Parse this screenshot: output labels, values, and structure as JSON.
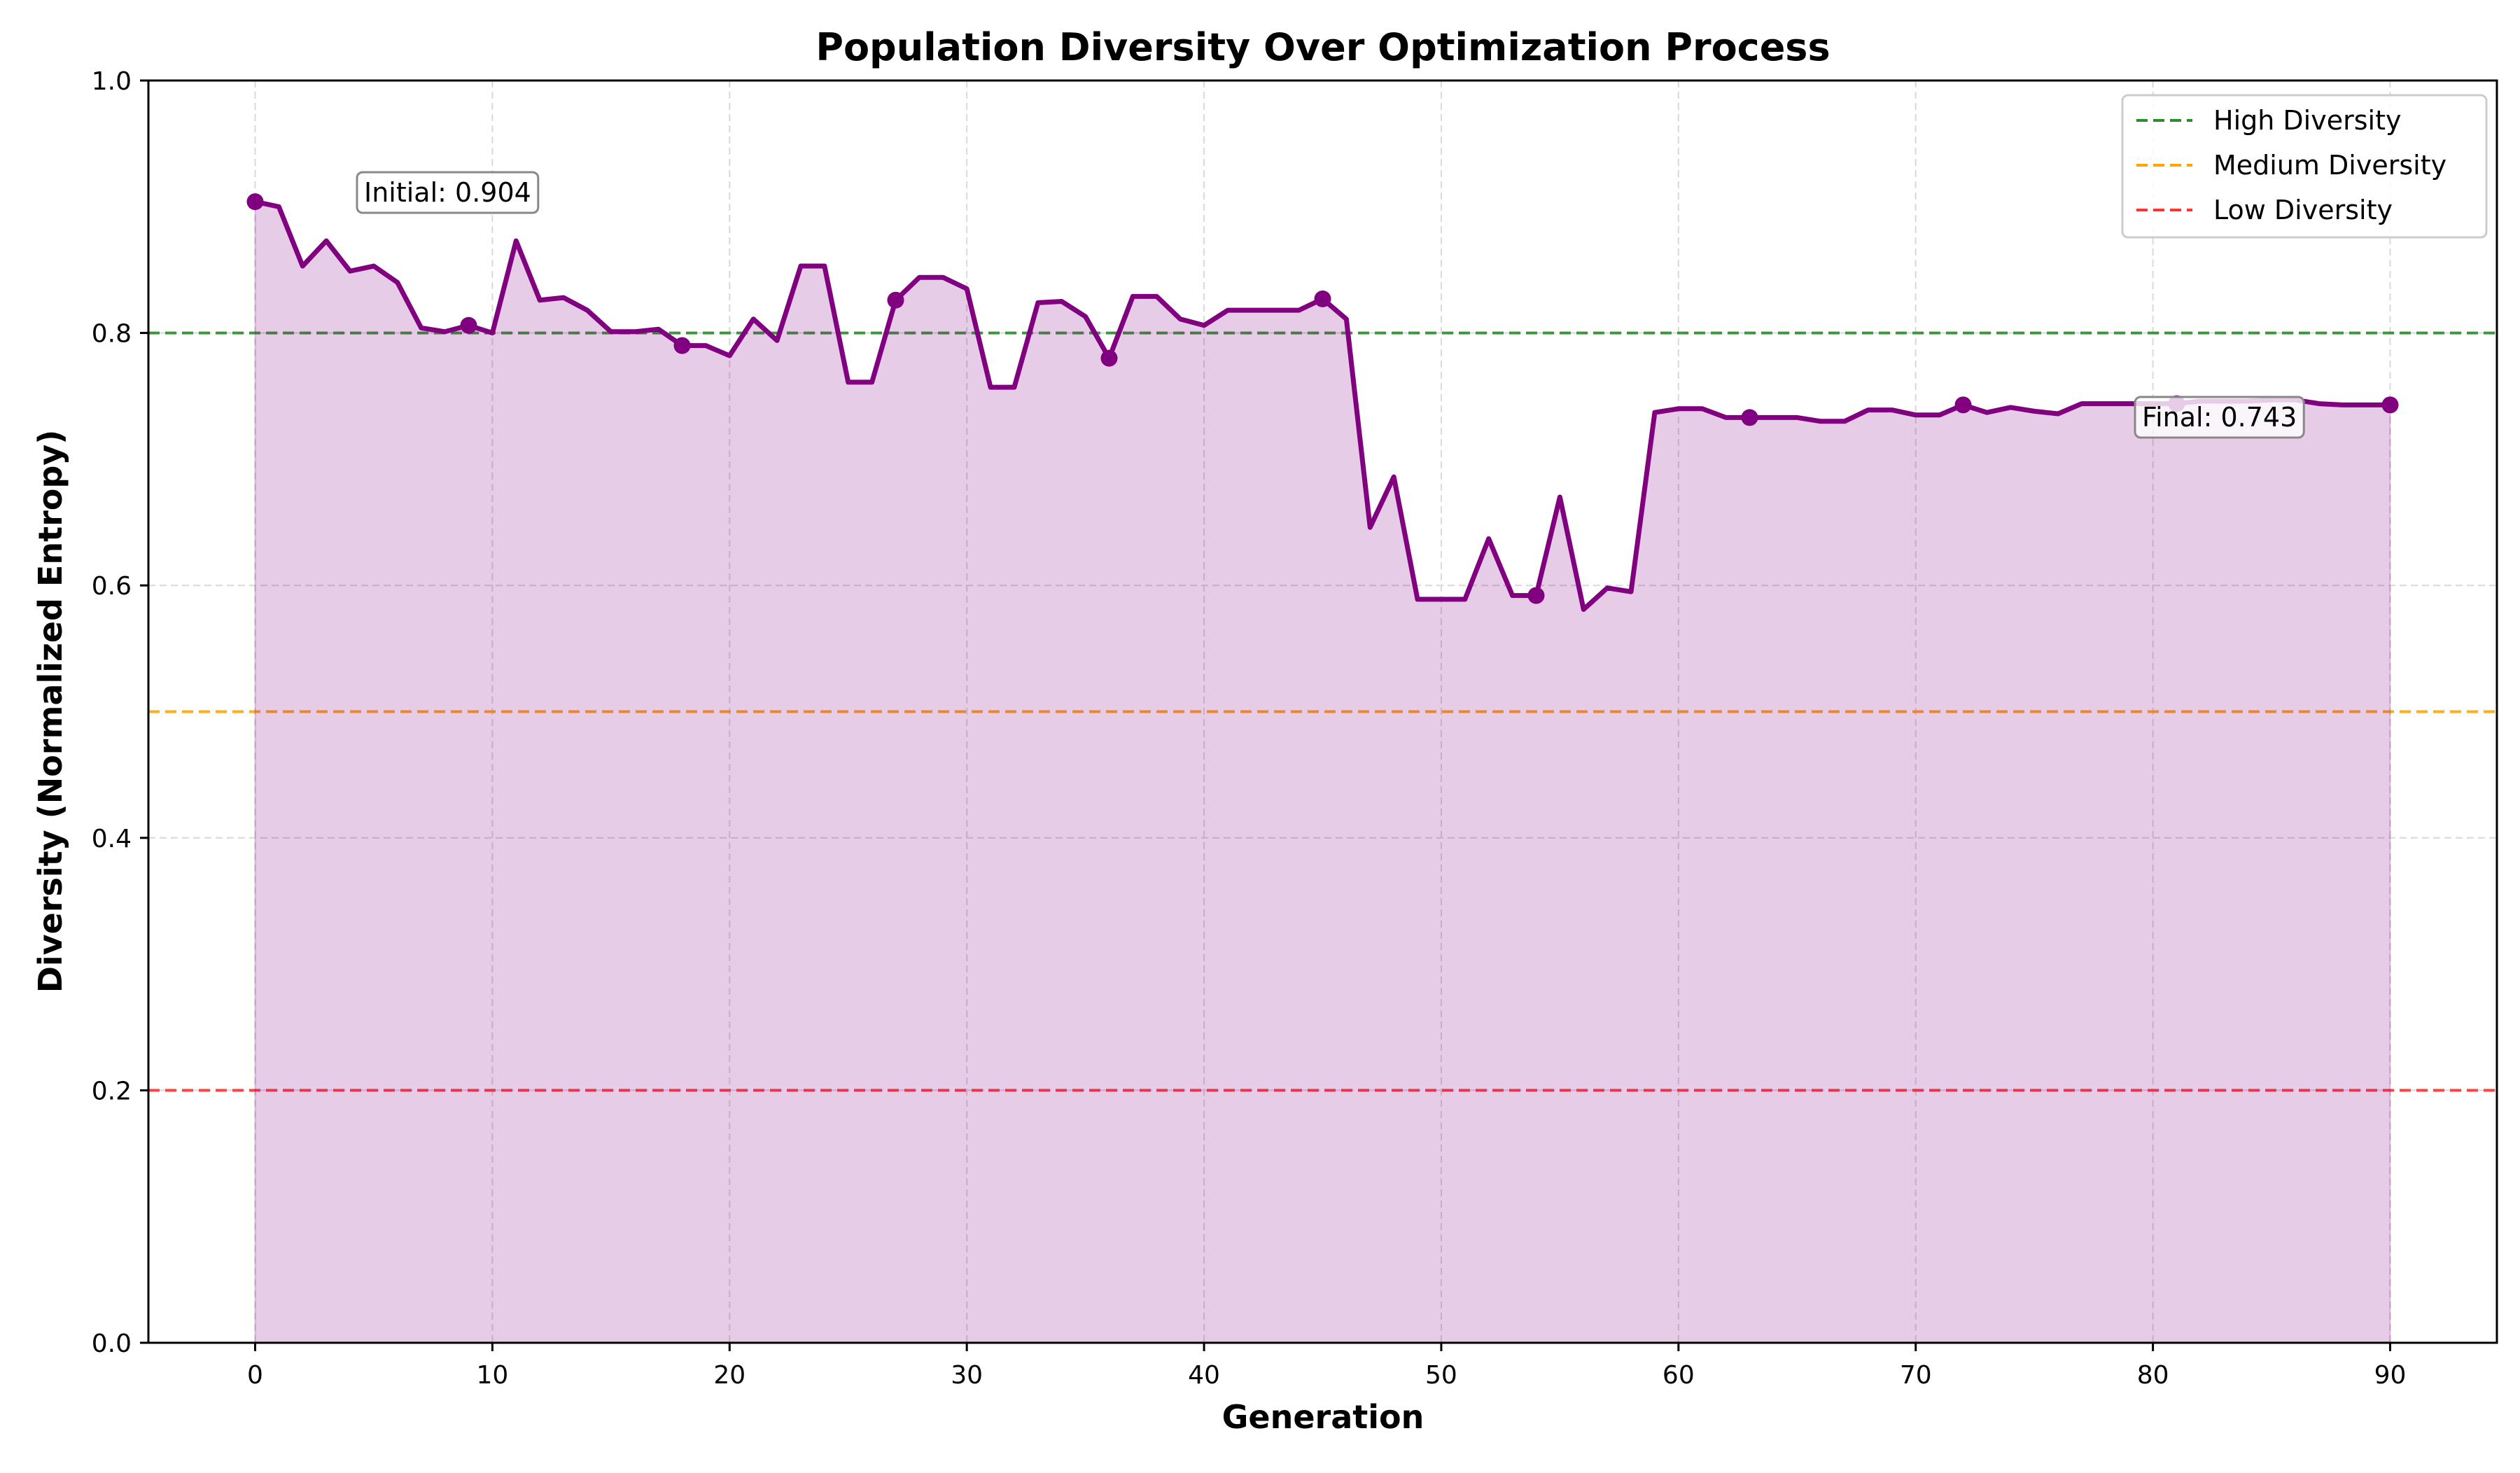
{
  "chart_data": {
    "type": "line",
    "title": "Population Diversity Over Optimization Process",
    "xlabel": "Generation",
    "ylabel": "Diversity (Normalized Entropy)",
    "xlim": [
      -4.5,
      94.5
    ],
    "ylim": [
      0.0,
      1.0
    ],
    "xticks": [
      0,
      10,
      20,
      30,
      40,
      50,
      60,
      70,
      80,
      90
    ],
    "xtick_labels": [
      "0",
      "10",
      "20",
      "30",
      "40",
      "50",
      "60",
      "70",
      "80",
      "90"
    ],
    "yticks": [
      0.0,
      0.2,
      0.4,
      0.6,
      0.8,
      1.0
    ],
    "ytick_labels": [
      "0.0",
      "0.2",
      "0.4",
      "0.6",
      "0.8",
      "1.0"
    ],
    "grid": true,
    "legend_position": "top-right",
    "series": [
      {
        "color": "#800080",
        "fill": "area",
        "x": [
          0,
          1,
          2,
          3,
          4,
          5,
          6,
          7,
          8,
          9,
          10,
          11,
          12,
          13,
          14,
          15,
          16,
          17,
          18,
          19,
          20,
          21,
          22,
          23,
          24,
          25,
          26,
          27,
          28,
          29,
          30,
          31,
          32,
          33,
          34,
          35,
          36,
          37,
          38,
          39,
          40,
          41,
          42,
          43,
          44,
          45,
          46,
          47,
          48,
          49,
          50,
          51,
          52,
          53,
          54,
          55,
          56,
          57,
          58,
          59,
          60,
          61,
          62,
          63,
          64,
          65,
          66,
          67,
          68,
          69,
          70,
          71,
          72,
          73,
          74,
          75,
          76,
          77,
          78,
          79,
          80,
          81,
          82,
          83,
          84,
          85,
          86,
          87,
          88,
          89,
          90
        ],
        "y": [
          0.904,
          0.9,
          0.853,
          0.873,
          0.849,
          0.853,
          0.84,
          0.804,
          0.801,
          0.806,
          0.8,
          0.873,
          0.826,
          0.828,
          0.818,
          0.801,
          0.801,
          0.803,
          0.79,
          0.79,
          0.782,
          0.811,
          0.794,
          0.853,
          0.853,
          0.761,
          0.761,
          0.826,
          0.844,
          0.844,
          0.835,
          0.757,
          0.757,
          0.824,
          0.825,
          0.813,
          0.78,
          0.829,
          0.829,
          0.811,
          0.806,
          0.818,
          0.818,
          0.818,
          0.818,
          0.827,
          0.811,
          0.646,
          0.686,
          0.589,
          0.589,
          0.589,
          0.637,
          0.592,
          0.592,
          0.67,
          0.581,
          0.598,
          0.595,
          0.737,
          0.74,
          0.74,
          0.733,
          0.733,
          0.733,
          0.733,
          0.73,
          0.73,
          0.739,
          0.739,
          0.735,
          0.735,
          0.743,
          0.737,
          0.741,
          0.738,
          0.736,
          0.744,
          0.744,
          0.744,
          0.744,
          0.744,
          0.746,
          0.746,
          0.746,
          0.747,
          0.747,
          0.744,
          0.743,
          0.743,
          0.743
        ],
        "markers_at": [
          0,
          9,
          18,
          27,
          36,
          45,
          54,
          63,
          72,
          81,
          90
        ]
      }
    ],
    "reference_lines": [
      {
        "name": "High Diversity",
        "y": 0.8,
        "color": "#2e8b2e",
        "style": "dashed"
      },
      {
        "name": "Medium Diversity",
        "y": 0.5,
        "color": "#ffa500",
        "style": "dashed"
      },
      {
        "name": "Low Diversity",
        "y": 0.2,
        "color": "#ff3333",
        "style": "dashed"
      }
    ],
    "annotations": [
      {
        "text": "Initial: 0.904",
        "x": 0,
        "y": 0.904
      },
      {
        "text": "Final: 0.743",
        "x": 90,
        "y": 0.743
      }
    ]
  }
}
